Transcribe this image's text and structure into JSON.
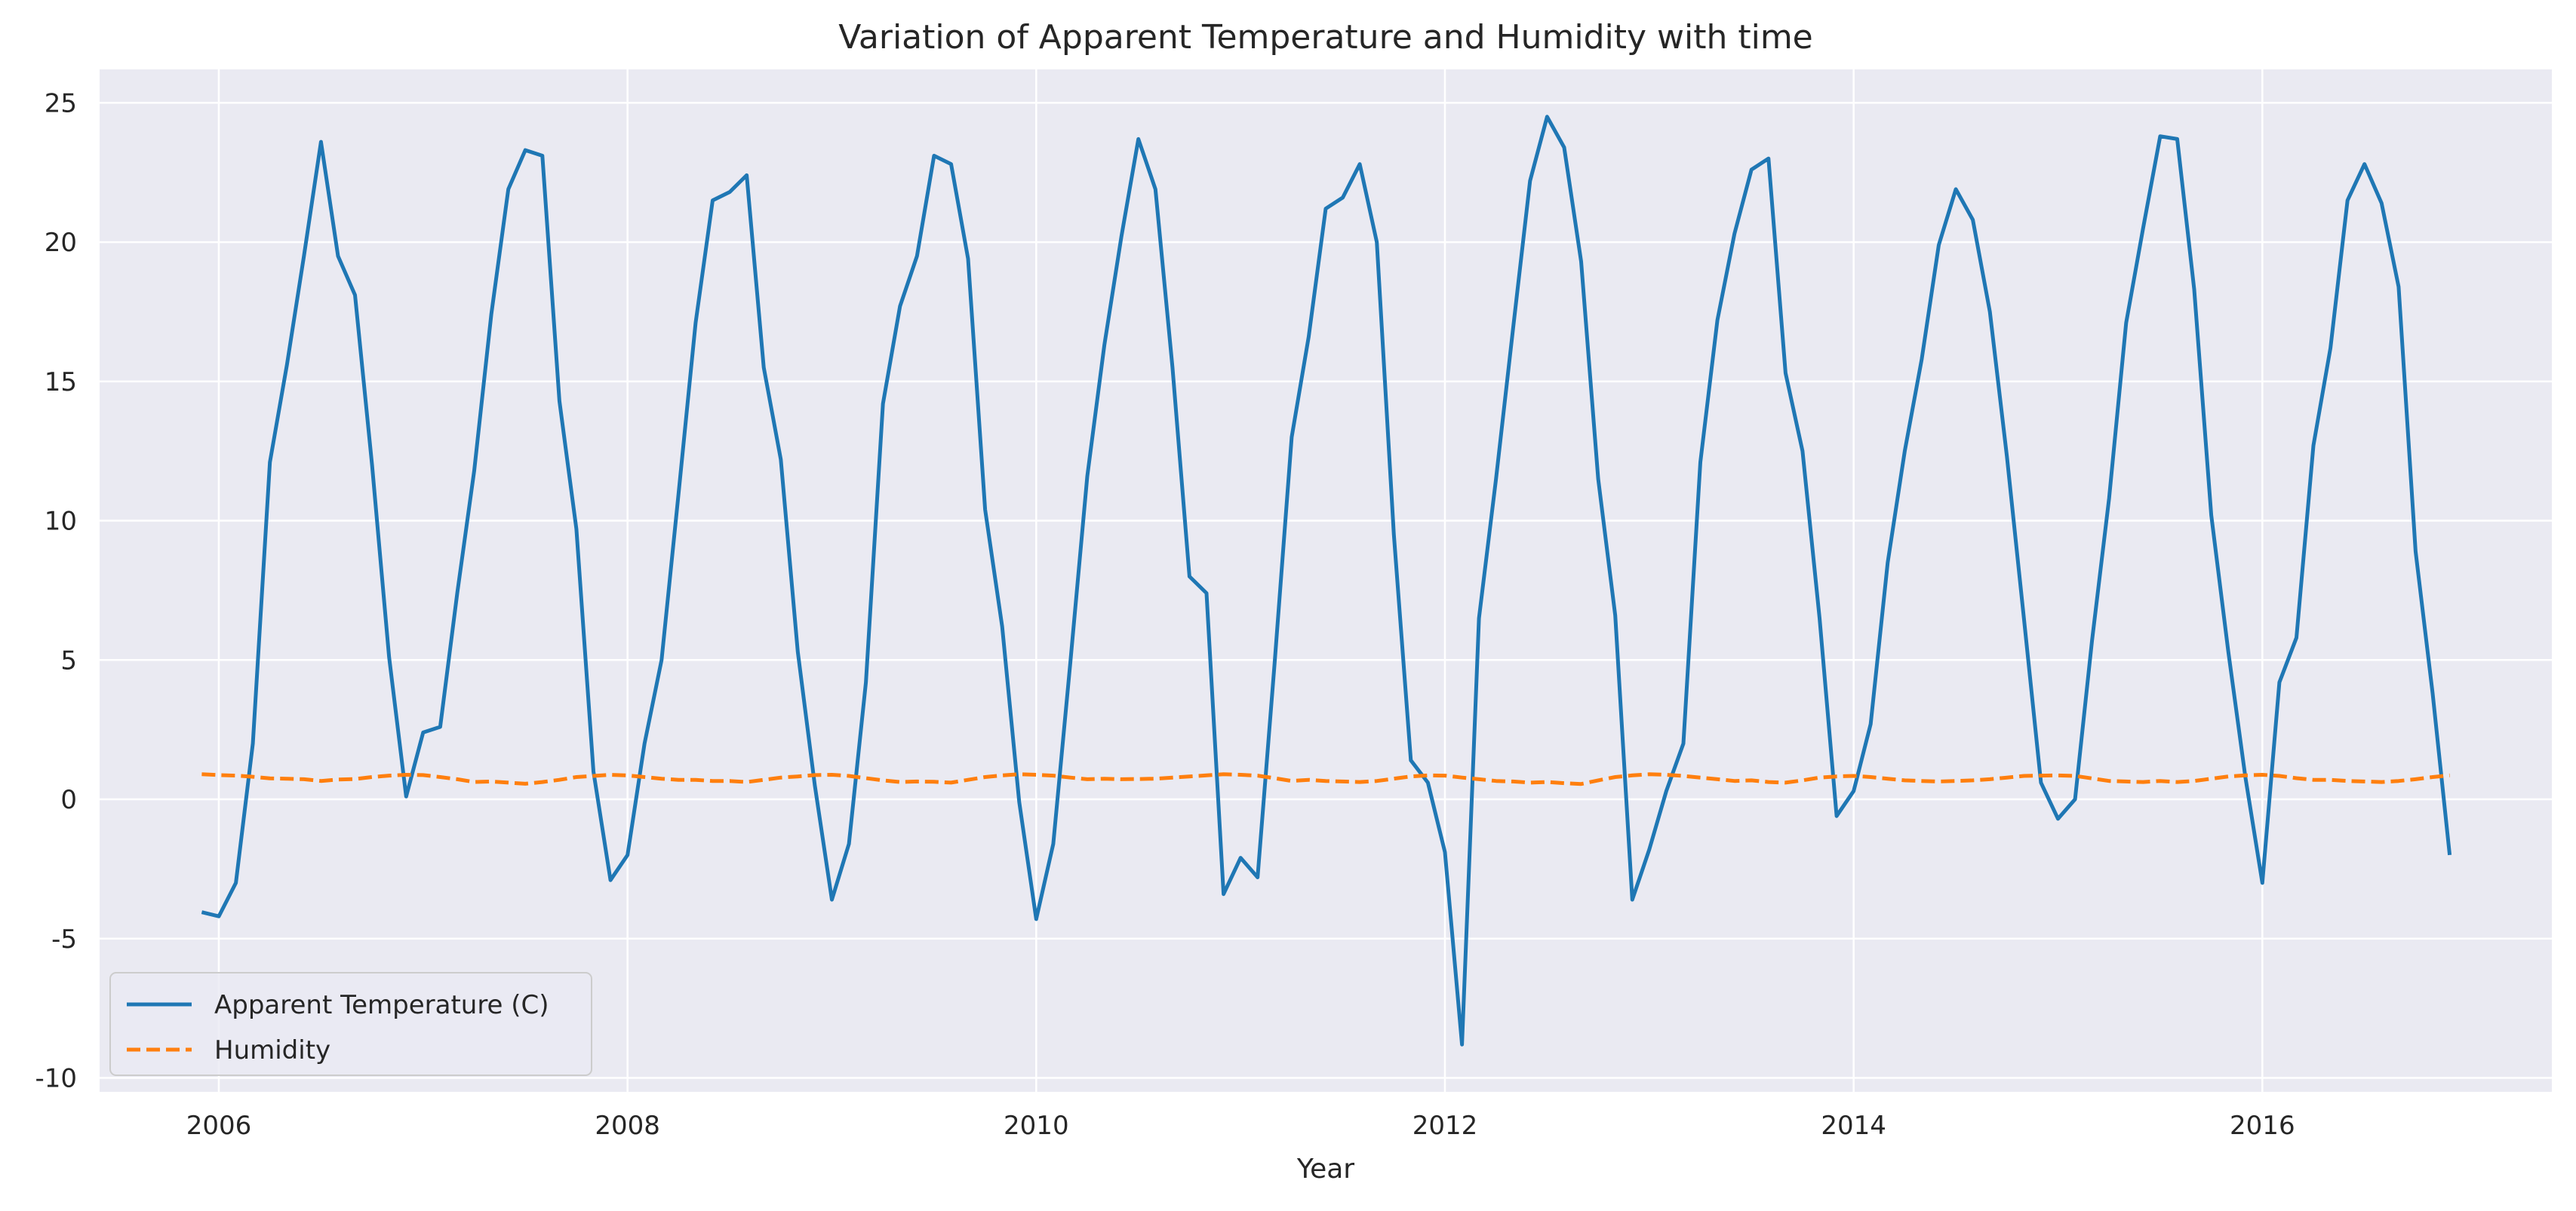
{
  "chart_data": {
    "type": "line",
    "title": "Variation of Apparent Temperature and Humidity with time",
    "xlabel": "Year",
    "ylabel": "",
    "xlim": [
      "2005-06-01",
      "2017-06-01"
    ],
    "ylim": [
      -10.5,
      26.2
    ],
    "x_ticks": [
      2006,
      2008,
      2010,
      2012,
      2014,
      2016
    ],
    "y_ticks": [
      -10,
      -5,
      0,
      5,
      10,
      15,
      20,
      25
    ],
    "grid": true,
    "legend_position": "lower-left",
    "x": [
      "2005-12",
      "2006-01",
      "2006-02",
      "2006-03",
      "2006-04",
      "2006-05",
      "2006-06",
      "2006-07",
      "2006-08",
      "2006-09",
      "2006-10",
      "2006-11",
      "2006-12",
      "2007-01",
      "2007-02",
      "2007-03",
      "2007-04",
      "2007-05",
      "2007-06",
      "2007-07",
      "2007-08",
      "2007-09",
      "2007-10",
      "2007-11",
      "2007-12",
      "2008-01",
      "2008-02",
      "2008-03",
      "2008-04",
      "2008-05",
      "2008-06",
      "2008-07",
      "2008-08",
      "2008-09",
      "2008-10",
      "2008-11",
      "2008-12",
      "2009-01",
      "2009-02",
      "2009-03",
      "2009-04",
      "2009-05",
      "2009-06",
      "2009-07",
      "2009-08",
      "2009-09",
      "2009-10",
      "2009-11",
      "2009-12",
      "2010-01",
      "2010-02",
      "2010-03",
      "2010-04",
      "2010-05",
      "2010-06",
      "2010-07",
      "2010-08",
      "2010-09",
      "2010-10",
      "2010-11",
      "2010-12",
      "2011-01",
      "2011-02",
      "2011-03",
      "2011-04",
      "2011-05",
      "2011-06",
      "2011-07",
      "2011-08",
      "2011-09",
      "2011-10",
      "2011-11",
      "2011-12",
      "2012-01",
      "2012-02",
      "2012-03",
      "2012-04",
      "2012-05",
      "2012-06",
      "2012-07",
      "2012-08",
      "2012-09",
      "2012-10",
      "2012-11",
      "2012-12",
      "2013-01",
      "2013-02",
      "2013-03",
      "2013-04",
      "2013-05",
      "2013-06",
      "2013-07",
      "2013-08",
      "2013-09",
      "2013-10",
      "2013-11",
      "2013-12",
      "2014-01",
      "2014-02",
      "2014-03",
      "2014-04",
      "2014-05",
      "2014-06",
      "2014-07",
      "2014-08",
      "2014-09",
      "2014-10",
      "2014-11",
      "2014-12",
      "2015-01",
      "2015-02",
      "2015-03",
      "2015-04",
      "2015-05",
      "2015-06",
      "2015-07",
      "2015-08",
      "2015-09",
      "2015-10",
      "2015-11",
      "2015-12",
      "2016-01",
      "2016-02",
      "2016-03",
      "2016-04",
      "2016-05",
      "2016-06",
      "2016-07",
      "2016-08",
      "2016-09",
      "2016-10",
      "2016-11",
      "2016-12"
    ],
    "series": [
      {
        "name": "Apparent Temperature (C)",
        "color": "#1f77b4",
        "style": "solid",
        "values": [
          -4.05,
          -4.2,
          -3.0,
          2.0,
          12.1,
          15.6,
          19.5,
          23.6,
          19.5,
          18.1,
          12.0,
          5.1,
          0.1,
          2.4,
          2.6,
          7.4,
          11.8,
          17.4,
          21.9,
          23.3,
          23.1,
          14.3,
          9.7,
          1.0,
          -2.9,
          -2.0,
          2.0,
          5.0,
          11.0,
          17.1,
          21.5,
          21.8,
          22.4,
          15.5,
          12.2,
          5.3,
          0.5,
          -3.6,
          -1.6,
          4.2,
          14.2,
          17.7,
          19.5,
          23.1,
          22.8,
          19.4,
          10.4,
          6.2,
          -0.1,
          -4.3,
          -1.6,
          4.9,
          11.6,
          16.3,
          20.2,
          23.7,
          21.9,
          15.5,
          8.0,
          7.4,
          -3.4,
          -2.1,
          -2.8,
          4.9,
          13.0,
          16.6,
          21.2,
          21.6,
          22.8,
          20.0,
          9.5,
          1.4,
          0.6,
          -1.9,
          -8.8,
          6.5,
          11.5,
          16.9,
          22.2,
          24.5,
          23.4,
          19.3,
          11.5,
          6.6,
          -3.6,
          -1.8,
          0.3,
          2.0,
          12.1,
          17.2,
          20.3,
          22.6,
          23.0,
          15.3,
          12.5,
          6.5,
          -0.6,
          0.3,
          2.7,
          8.5,
          12.5,
          15.8,
          19.9,
          21.9,
          20.8,
          17.5,
          12.3,
          6.5,
          0.6,
          -0.7,
          0.0,
          5.7,
          10.8,
          17.1,
          20.5,
          23.8,
          23.7,
          18.3,
          10.2,
          5.3,
          0.8,
          -3.0,
          4.2,
          5.8,
          12.7,
          16.2,
          21.5,
          22.8,
          21.4,
          18.4,
          8.9,
          3.8,
          -2.0
        ]
      },
      {
        "name": "Humidity",
        "color": "#ff7f0e",
        "style": "dashed",
        "values": [
          0.9,
          0.87,
          0.85,
          0.81,
          0.75,
          0.74,
          0.72,
          0.66,
          0.71,
          0.73,
          0.8,
          0.85,
          0.88,
          0.87,
          0.8,
          0.72,
          0.62,
          0.64,
          0.6,
          0.56,
          0.62,
          0.7,
          0.8,
          0.84,
          0.88,
          0.86,
          0.8,
          0.74,
          0.7,
          0.7,
          0.66,
          0.66,
          0.62,
          0.7,
          0.78,
          0.82,
          0.87,
          0.88,
          0.84,
          0.76,
          0.68,
          0.62,
          0.64,
          0.63,
          0.6,
          0.7,
          0.8,
          0.86,
          0.9,
          0.88,
          0.85,
          0.78,
          0.72,
          0.74,
          0.72,
          0.73,
          0.74,
          0.78,
          0.82,
          0.86,
          0.9,
          0.88,
          0.85,
          0.76,
          0.66,
          0.7,
          0.66,
          0.64,
          0.62,
          0.66,
          0.74,
          0.82,
          0.86,
          0.85,
          0.78,
          0.72,
          0.66,
          0.64,
          0.6,
          0.62,
          0.58,
          0.55,
          0.68,
          0.8,
          0.86,
          0.9,
          0.88,
          0.84,
          0.78,
          0.72,
          0.66,
          0.68,
          0.62,
          0.6,
          0.68,
          0.78,
          0.82,
          0.84,
          0.8,
          0.74,
          0.68,
          0.66,
          0.64,
          0.66,
          0.68,
          0.72,
          0.78,
          0.84,
          0.85,
          0.86,
          0.84,
          0.75,
          0.66,
          0.64,
          0.62,
          0.66,
          0.62,
          0.66,
          0.74,
          0.82,
          0.86,
          0.88,
          0.84,
          0.76,
          0.7,
          0.7,
          0.66,
          0.64,
          0.62,
          0.66,
          0.72,
          0.8,
          0.86
        ]
      }
    ]
  }
}
